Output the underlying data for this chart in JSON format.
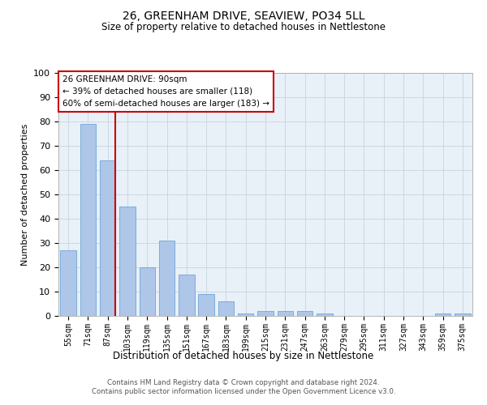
{
  "title1": "26, GREENHAM DRIVE, SEAVIEW, PO34 5LL",
  "title2": "Size of property relative to detached houses in Nettlestone",
  "xlabel": "Distribution of detached houses by size in Nettlestone",
  "ylabel": "Number of detached properties",
  "categories": [
    "55sqm",
    "71sqm",
    "87sqm",
    "103sqm",
    "119sqm",
    "135sqm",
    "151sqm",
    "167sqm",
    "183sqm",
    "199sqm",
    "215sqm",
    "231sqm",
    "247sqm",
    "263sqm",
    "279sqm",
    "295sqm",
    "311sqm",
    "327sqm",
    "343sqm",
    "359sqm",
    "375sqm"
  ],
  "values": [
    27,
    79,
    64,
    45,
    20,
    31,
    17,
    9,
    6,
    1,
    2,
    2,
    2,
    1,
    0,
    0,
    0,
    0,
    0,
    1,
    1
  ],
  "bar_color": "#aec6e8",
  "bar_edgecolor": "#5b9bd5",
  "vline_color": "#cc0000",
  "annotation_lines": [
    "26 GREENHAM DRIVE: 90sqm",
    "← 39% of detached houses are smaller (118)",
    "60% of semi-detached houses are larger (183) →"
  ],
  "annotation_box_color": "#ffffff",
  "annotation_box_edgecolor": "#cc0000",
  "ylim": [
    0,
    100
  ],
  "yticks": [
    0,
    10,
    20,
    30,
    40,
    50,
    60,
    70,
    80,
    90,
    100
  ],
  "footnote": "Contains HM Land Registry data © Crown copyright and database right 2024.\nContains public sector information licensed under the Open Government Licence v3.0.",
  "background_color": "#ffffff",
  "plot_bg_color": "#e8f0f8",
  "grid_color": "#c8d4e0"
}
